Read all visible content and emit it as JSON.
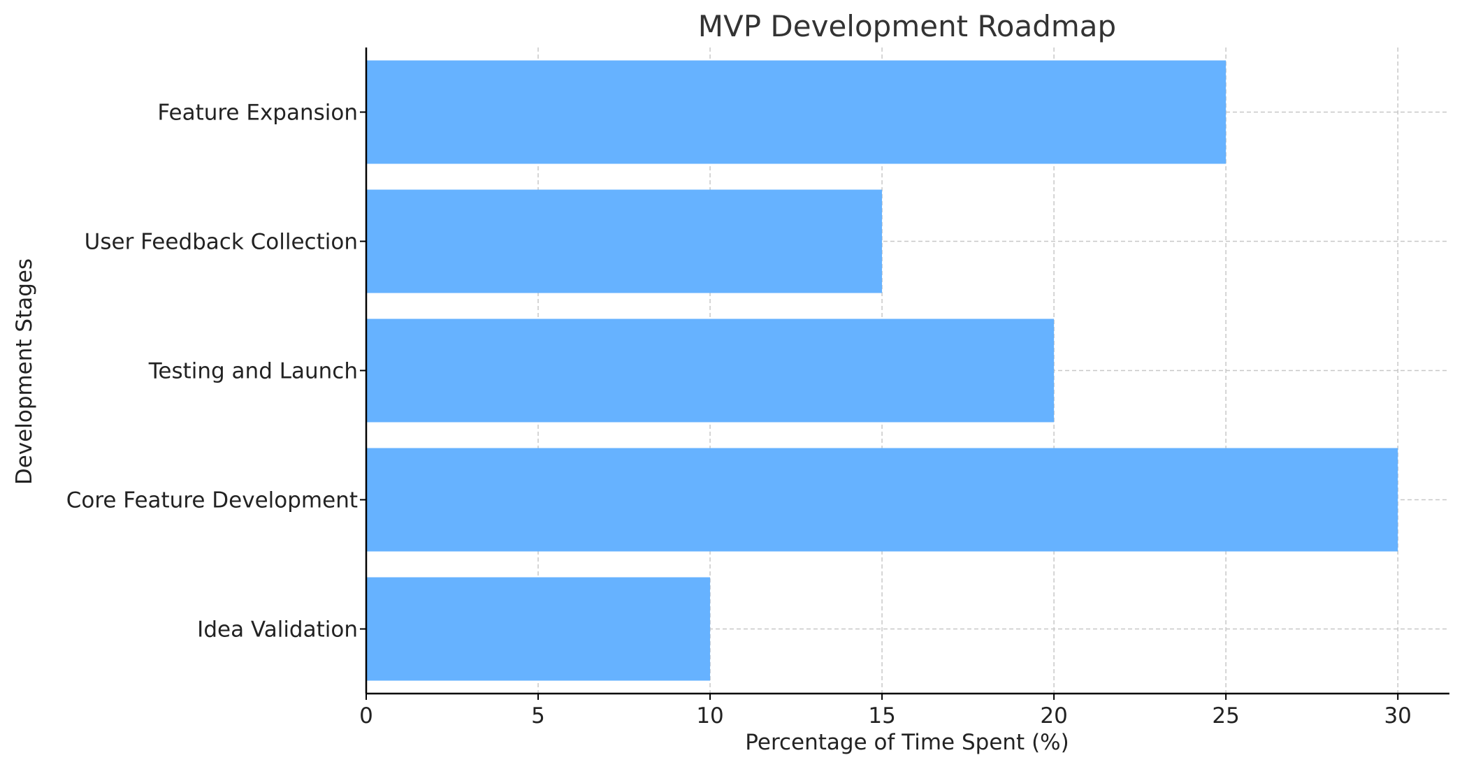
{
  "chart_data": {
    "type": "bar",
    "orientation": "horizontal",
    "title": "MVP Development Roadmap",
    "xlabel": "Percentage of Time Spent (%)",
    "ylabel": "Development Stages",
    "categories": [
      "Idea Validation",
      "Core Feature Development",
      "Testing and Launch",
      "User Feedback Collection",
      "Feature Expansion"
    ],
    "values": [
      10,
      30,
      20,
      15,
      25
    ],
    "xlim": [
      0,
      31.5
    ],
    "xticks": [
      0,
      5,
      10,
      15,
      20,
      25,
      30
    ],
    "xtick_labels": [
      "0",
      "5",
      "10",
      "15",
      "20",
      "25",
      "30"
    ],
    "grid": true,
    "grid_style": "dashed",
    "bar_color": "#66b2ff",
    "grid_color": "#c8c8c8",
    "axis_color": "#000000"
  }
}
